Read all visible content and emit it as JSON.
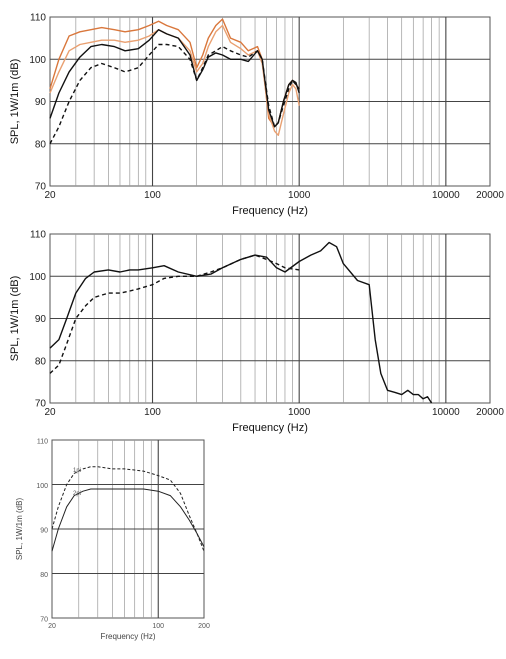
{
  "chart_data": [
    {
      "type": "line",
      "xlabel": "Frequency (Hz)",
      "ylabel": "SPL, 1W/1m (dB)",
      "xscale": "log",
      "xlim": [
        20,
        20000
      ],
      "ylim": [
        70,
        110
      ],
      "xticks": [
        20,
        100,
        1000,
        10000,
        20000
      ],
      "xtick_labels": [
        "20",
        "100",
        "1000",
        "10000",
        "20000"
      ],
      "yticks": [
        70,
        80,
        90,
        100,
        110
      ],
      "ytick_labels": [
        "70",
        "80",
        "90",
        "100",
        "110"
      ],
      "grid": true,
      "colors": [
        "#d9773c",
        "#e9a071",
        "#111111",
        "#111111"
      ],
      "series": [
        {
          "style": "solid",
          "x": [
            20,
            23,
            27,
            32,
            38,
            45,
            55,
            65,
            80,
            95,
            110,
            125,
            150,
            180,
            200,
            220,
            240,
            270,
            300,
            340,
            400,
            450,
            520,
            560,
            620,
            680,
            720,
            780,
            850,
            900,
            950,
            1000
          ],
          "y": [
            93,
            100,
            105.5,
            106.5,
            107,
            107.5,
            107,
            106.5,
            107,
            108,
            109,
            108,
            107,
            104,
            98,
            101,
            105,
            108,
            109.5,
            105,
            104,
            102,
            103,
            100,
            86,
            84,
            85,
            90,
            94,
            95,
            94,
            93
          ]
        },
        {
          "style": "solid",
          "x": [
            20,
            23,
            27,
            32,
            38,
            45,
            55,
            65,
            80,
            95,
            110,
            125,
            150,
            180,
            200,
            220,
            240,
            270,
            300,
            340,
            400,
            450,
            520,
            560,
            620,
            680,
            720,
            780,
            850,
            900,
            950,
            1000
          ],
          "y": [
            92,
            97,
            102,
            103.5,
            104,
            104.5,
            104.5,
            104,
            104.5,
            105.5,
            107,
            106,
            105,
            102,
            97,
            99,
            103,
            106.5,
            108,
            104,
            102.5,
            101,
            102,
            99,
            87,
            83,
            82,
            87,
            92,
            94,
            93,
            89
          ]
        },
        {
          "style": "solid",
          "x": [
            20,
            23,
            27,
            32,
            38,
            45,
            55,
            65,
            80,
            95,
            110,
            125,
            150,
            180,
            200,
            220,
            240,
            270,
            300,
            340,
            400,
            450,
            520,
            560,
            620,
            680,
            720,
            780,
            850,
            900,
            950,
            1000
          ],
          "y": [
            86,
            92,
            97,
            100.5,
            103,
            103.5,
            103,
            102,
            102.5,
            104.5,
            107,
            106,
            105,
            101,
            95,
            97.5,
            100.5,
            101.5,
            101,
            100,
            100,
            99.5,
            102,
            100,
            88,
            84,
            85,
            90,
            94,
            95,
            94.5,
            92
          ]
        },
        {
          "style": "dashed",
          "x": [
            20,
            23,
            27,
            32,
            38,
            45,
            55,
            65,
            80,
            95,
            110,
            125,
            150,
            180,
            200,
            220,
            240,
            270,
            300,
            340,
            400,
            450,
            520,
            560,
            620,
            680,
            720,
            780,
            850,
            900,
            950,
            1000
          ],
          "y": [
            80,
            84,
            90,
            95,
            98,
            99,
            98,
            97,
            98,
            101,
            103.5,
            103.5,
            103,
            100,
            95,
            98,
            101,
            102,
            103,
            102,
            101,
            100.5,
            102,
            100,
            89,
            84,
            85,
            89,
            93,
            95,
            94,
            93
          ]
        }
      ]
    },
    {
      "type": "line",
      "xlabel": "Frequency (Hz)",
      "ylabel": "SPL, 1W/1m (dB)",
      "xscale": "log",
      "xlim": [
        20,
        20000
      ],
      "ylim": [
        70,
        110
      ],
      "xticks": [
        20,
        100,
        1000,
        10000,
        20000
      ],
      "xtick_labels": [
        "20",
        "100",
        "1000",
        "10000",
        "20000"
      ],
      "yticks": [
        70,
        80,
        90,
        100,
        110
      ],
      "ytick_labels": [
        "70",
        "80",
        "90",
        "100",
        "110"
      ],
      "grid": true,
      "colors": [
        "#111111",
        "#111111"
      ],
      "series": [
        {
          "style": "solid",
          "x": [
            20,
            23,
            26,
            30,
            35,
            40,
            50,
            60,
            70,
            80,
            100,
            120,
            150,
            200,
            250,
            300,
            400,
            500,
            600,
            700,
            800,
            1000,
            1200,
            1400,
            1600,
            1800,
            2000,
            2500,
            3000,
            3300,
            3600,
            4000,
            4500,
            5000,
            5500,
            6000,
            6500,
            7000,
            7500,
            8000
          ],
          "y": [
            83,
            85,
            90,
            96,
            99.5,
            101,
            101.5,
            101,
            101.5,
            101.5,
            102,
            102.5,
            101,
            100,
            100.5,
            102,
            104,
            105,
            104.5,
            102,
            101,
            103.5,
            105,
            106,
            108,
            107,
            103,
            99,
            98,
            85,
            77,
            73,
            72.5,
            72,
            73,
            72,
            72,
            71,
            71.5,
            70
          ]
        },
        {
          "style": "dashed",
          "x": [
            20,
            23,
            26,
            30,
            35,
            40,
            50,
            60,
            70,
            80,
            100,
            120,
            150,
            200,
            250,
            300,
            400,
            500,
            600,
            700,
            800,
            1000
          ],
          "y": [
            77,
            79,
            84,
            90,
            93,
            95,
            96,
            96,
            96.5,
            97,
            98,
            99.5,
            100,
            100,
            101,
            102,
            104,
            105,
            104,
            103,
            102,
            101.5
          ]
        }
      ]
    },
    {
      "type": "line",
      "xlabel": "Frequency (Hz)",
      "ylabel": "SPL, 1W/1m (dB)",
      "xscale": "log",
      "xlim": [
        20,
        200
      ],
      "ylim": [
        70,
        110
      ],
      "xticks": [
        20,
        100,
        200
      ],
      "xtick_labels": [
        "20",
        "100",
        "200"
      ],
      "yticks": [
        70,
        80,
        90,
        100,
        110
      ],
      "ytick_labels": [
        "70",
        "80",
        "90",
        "100",
        "110"
      ],
      "grid": true,
      "colors": [
        "#222222",
        "#222222"
      ],
      "annotations": [
        "1pi",
        "2pi"
      ],
      "series": [
        {
          "style": "dashed",
          "x": [
            20,
            22,
            25,
            28,
            32,
            36,
            40,
            50,
            60,
            80,
            100,
            120,
            140,
            160,
            180,
            200
          ],
          "y": [
            90,
            95,
            100,
            102.5,
            103.5,
            104,
            104,
            103.5,
            103.5,
            103,
            102,
            101,
            98,
            93,
            89,
            85
          ]
        },
        {
          "style": "solid",
          "x": [
            20,
            22,
            25,
            28,
            32,
            36,
            40,
            50,
            60,
            80,
            100,
            120,
            140,
            160,
            180,
            200
          ],
          "y": [
            85,
            90,
            95,
            97.5,
            98.5,
            99,
            99,
            99,
            99,
            99,
            98.5,
            97.5,
            95,
            92,
            89,
            86
          ]
        }
      ]
    }
  ]
}
